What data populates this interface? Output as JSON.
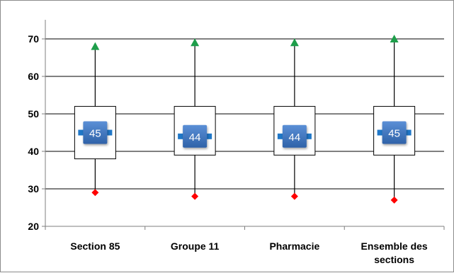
{
  "chart_data": {
    "type": "boxplot",
    "ylim": [
      20,
      70
    ],
    "yticks": [
      20,
      30,
      40,
      50,
      60,
      70
    ],
    "grid": true,
    "categories": [
      [
        "Section 85"
      ],
      [
        "Groupe 11"
      ],
      [
        "Pharmacie"
      ],
      [
        "Ensemble des",
        "sections"
      ]
    ],
    "boxes": [
      {
        "min": 29,
        "q1": 38,
        "mean": 45,
        "q3": 52,
        "max": 68
      },
      {
        "min": 28,
        "q1": 39,
        "mean": 44,
        "q3": 52,
        "max": 69
      },
      {
        "min": 28,
        "q1": 39,
        "mean": 44,
        "q3": 52,
        "max": 69
      },
      {
        "min": 27,
        "q1": 39,
        "mean": 45,
        "q3": 52,
        "max": 70
      }
    ],
    "colors": {
      "max_marker": "#1e9e4a",
      "min_marker": "#ff0000",
      "mean_badge": "#3c70b5",
      "mean_bar": "#1f77c8",
      "box_fill": "#ffffff",
      "box_edge": "#000000",
      "grid": "#000000"
    }
  }
}
